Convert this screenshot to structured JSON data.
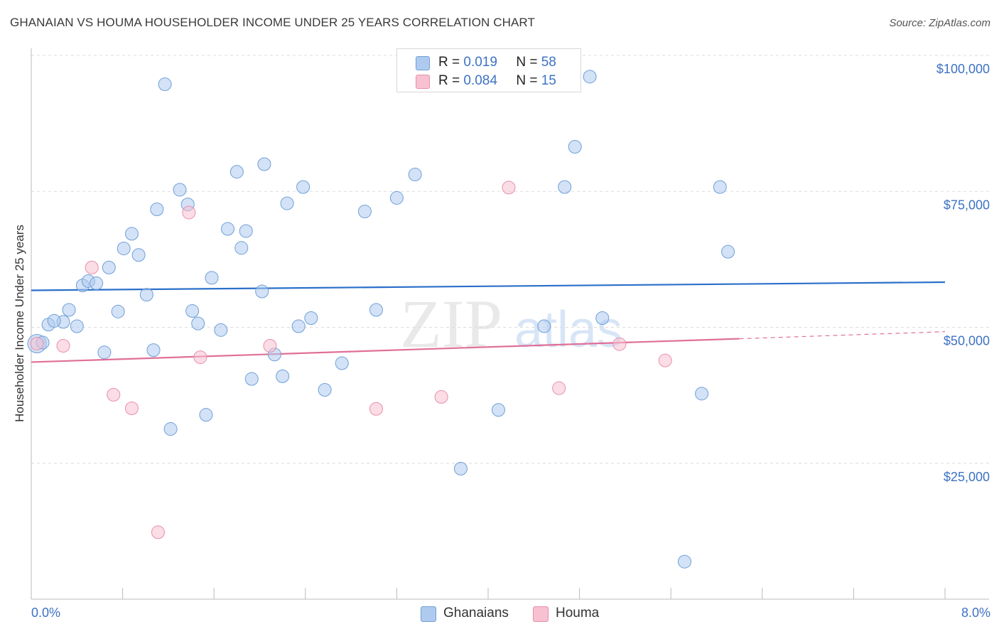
{
  "title": "GHANAIAN VS HOUMA HOUSEHOLDER INCOME UNDER 25 YEARS CORRELATION CHART",
  "source": "Source: ZipAtlas.com",
  "watermark": {
    "zip": "ZIP",
    "atlas": "atlas"
  },
  "colors": {
    "blue_fill": "#aecbef",
    "blue_stroke": "#6f9fd8",
    "blue_line": "#2a6fca",
    "pink_fill": "#f7c1d1",
    "pink_stroke": "#e78fab",
    "pink_line": "#e06f98",
    "axis_label": "#3d72c4"
  },
  "legend": {
    "rows": [
      {
        "r_label": "R =",
        "r_value": "0.019",
        "n_label": "N =",
        "n_value": "58"
      },
      {
        "r_label": "R =",
        "r_value": "0.084",
        "n_label": "N =",
        "n_value": "15"
      }
    ]
  },
  "bottom_legend": [
    "Ghanaians",
    "Houma"
  ],
  "chart_data": {
    "type": "scatter",
    "title": "GHANAIAN VS HOUMA HOUSEHOLDER INCOME UNDER 25 YEARS CORRELATION CHART",
    "xlabel": "",
    "ylabel": "Householder Income Under 25 years",
    "xlim": [
      0,
      8
    ],
    "ylim": [
      0,
      103000
    ],
    "x_tick_labels": [
      "0.0%",
      "8.0%"
    ],
    "y_ticks": [
      25000,
      50000,
      75000,
      100000
    ],
    "y_tick_labels": [
      "$25,000",
      "$50,000",
      "$75,000",
      "$100,000"
    ],
    "grid": "horizontal dashed",
    "series": [
      {
        "name": "Ghanaians",
        "r": 0.019,
        "n": 58,
        "trend": {
          "x": [
            0,
            8
          ],
          "y": [
            56800,
            58300
          ]
        },
        "points": [
          {
            "x": 0.05,
            "y": 47000,
            "big": true
          },
          {
            "x": 0.15,
            "y": 50500
          },
          {
            "x": 0.28,
            "y": 51000
          },
          {
            "x": 0.33,
            "y": 53200
          },
          {
            "x": 0.4,
            "y": 50200
          },
          {
            "x": 0.45,
            "y": 57700
          },
          {
            "x": 0.5,
            "y": 58500
          },
          {
            "x": 0.57,
            "y": 58100
          },
          {
            "x": 0.64,
            "y": 45400
          },
          {
            "x": 0.68,
            "y": 61000
          },
          {
            "x": 0.76,
            "y": 52900
          },
          {
            "x": 0.81,
            "y": 64500
          },
          {
            "x": 0.88,
            "y": 67200
          },
          {
            "x": 0.94,
            "y": 63300
          },
          {
            "x": 1.01,
            "y": 56000
          },
          {
            "x": 1.07,
            "y": 45800
          },
          {
            "x": 1.1,
            "y": 71700
          },
          {
            "x": 1.17,
            "y": 94700
          },
          {
            "x": 1.22,
            "y": 31300
          },
          {
            "x": 1.3,
            "y": 75300
          },
          {
            "x": 1.37,
            "y": 72600
          },
          {
            "x": 1.41,
            "y": 53000
          },
          {
            "x": 1.46,
            "y": 50700
          },
          {
            "x": 1.53,
            "y": 33900
          },
          {
            "x": 1.58,
            "y": 59100
          },
          {
            "x": 1.66,
            "y": 49500
          },
          {
            "x": 1.72,
            "y": 68100
          },
          {
            "x": 1.8,
            "y": 78600
          },
          {
            "x": 1.84,
            "y": 64600
          },
          {
            "x": 1.88,
            "y": 67700
          },
          {
            "x": 1.93,
            "y": 40500
          },
          {
            "x": 2.02,
            "y": 56600
          },
          {
            "x": 2.04,
            "y": 80000
          },
          {
            "x": 2.13,
            "y": 45000
          },
          {
            "x": 2.2,
            "y": 41000
          },
          {
            "x": 2.24,
            "y": 72800
          },
          {
            "x": 2.34,
            "y": 50200
          },
          {
            "x": 2.38,
            "y": 75800
          },
          {
            "x": 2.45,
            "y": 51700
          },
          {
            "x": 2.57,
            "y": 38500
          },
          {
            "x": 2.72,
            "y": 43400
          },
          {
            "x": 2.92,
            "y": 71300
          },
          {
            "x": 3.02,
            "y": 53200
          },
          {
            "x": 3.2,
            "y": 73800
          },
          {
            "x": 3.36,
            "y": 78100
          },
          {
            "x": 3.76,
            "y": 24000
          },
          {
            "x": 4.09,
            "y": 34800
          },
          {
            "x": 4.49,
            "y": 50200
          },
          {
            "x": 4.67,
            "y": 75800
          },
          {
            "x": 4.76,
            "y": 83200
          },
          {
            "x": 4.89,
            "y": 96100
          },
          {
            "x": 5.0,
            "y": 51700
          },
          {
            "x": 5.72,
            "y": 6900
          },
          {
            "x": 5.87,
            "y": 37800
          },
          {
            "x": 6.03,
            "y": 75800
          },
          {
            "x": 6.1,
            "y": 63900
          },
          {
            "x": 0.1,
            "y": 47200
          },
          {
            "x": 0.2,
            "y": 51200
          }
        ]
      },
      {
        "name": "Houma",
        "r": 0.084,
        "n": 15,
        "trend": {
          "x": [
            0,
            6.2
          ],
          "y": [
            43600,
            47900
          ]
        },
        "trend_dashed": {
          "x": [
            6.2,
            8
          ],
          "y": [
            47900,
            49200
          ]
        },
        "points": [
          {
            "x": 0.05,
            "y": 47000
          },
          {
            "x": 0.28,
            "y": 46600
          },
          {
            "x": 0.53,
            "y": 61000
          },
          {
            "x": 0.72,
            "y": 37600
          },
          {
            "x": 0.88,
            "y": 35100
          },
          {
            "x": 1.11,
            "y": 12300
          },
          {
            "x": 1.38,
            "y": 71100
          },
          {
            "x": 1.48,
            "y": 44500
          },
          {
            "x": 2.09,
            "y": 46600
          },
          {
            "x": 3.02,
            "y": 35000
          },
          {
            "x": 3.59,
            "y": 37200
          },
          {
            "x": 4.18,
            "y": 75700
          },
          {
            "x": 4.62,
            "y": 38800
          },
          {
            "x": 5.15,
            "y": 46900
          },
          {
            "x": 5.55,
            "y": 43900
          }
        ]
      }
    ]
  }
}
